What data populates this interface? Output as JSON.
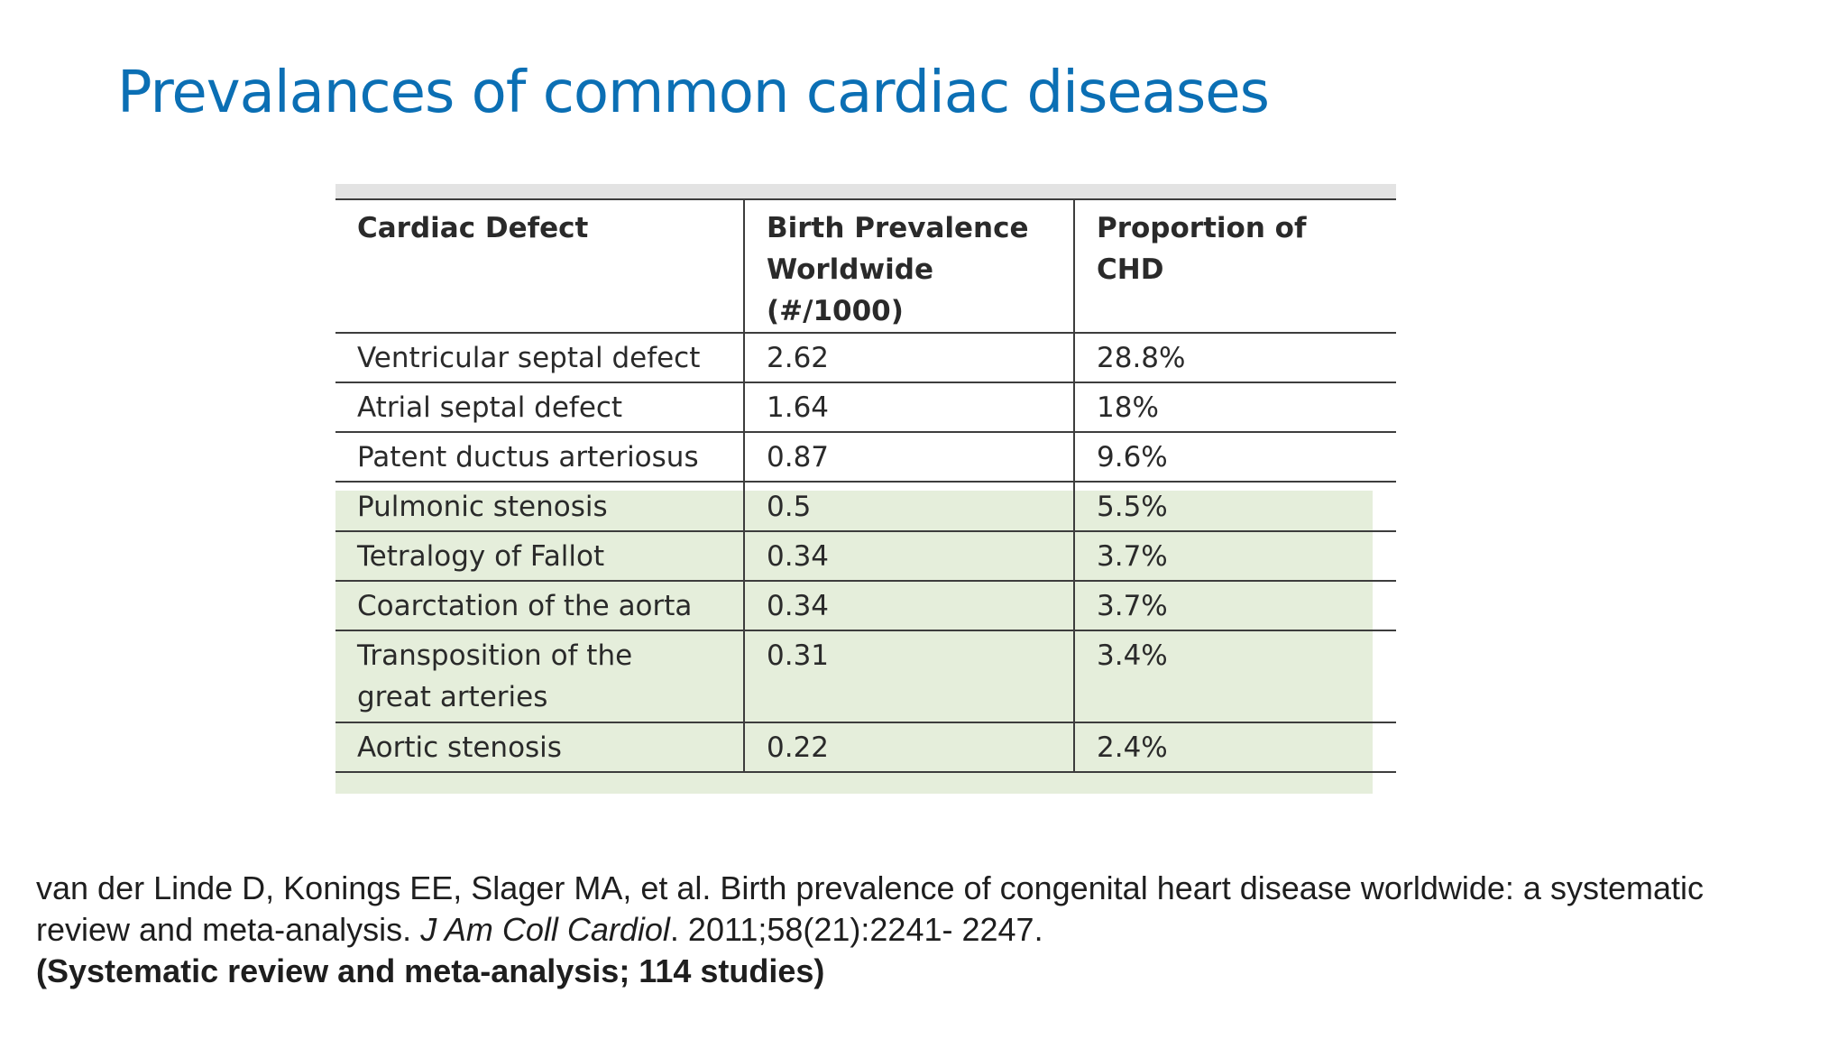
{
  "slide": {
    "title": "Prevalances of common cardiac diseases"
  },
  "table": {
    "headers": [
      "Cardiac Defect",
      "Birth Prevalence\n  Worldwide\n  (#/1000)",
      "Proportion of\n  CHD"
    ],
    "rows": [
      {
        "defect": "Ventricular septal defect",
        "prevalence": "2.62",
        "proportion": "28.8%"
      },
      {
        "defect": "Atrial septal defect",
        "prevalence": "1.64",
        "proportion": "18%"
      },
      {
        "defect": "Patent ductus arteriosus",
        "prevalence": "0.87",
        "proportion": "9.6%"
      },
      {
        "defect": "Pulmonic stenosis",
        "prevalence": "0.5",
        "proportion": "5.5%"
      },
      {
        "defect": "Tetralogy of Fallot",
        "prevalence": "0.34",
        "proportion": "3.7%"
      },
      {
        "defect": "Coarctation of the aorta",
        "prevalence": "0.34",
        "proportion": "3.7%"
      },
      {
        "defect": "Transposition of the\n  great arteries",
        "prevalence": "0.31",
        "proportion": "3.4%"
      },
      {
        "defect": "Aortic stenosis",
        "prevalence": "0.22",
        "proportion": "2.4%"
      }
    ],
    "highlight_color": "#e5eedb"
  },
  "citation": {
    "authors_title": "van der Linde D, Konings EE, Slager MA, et al. Birth prevalence of congenital heart disease worldwide: a systematic review and meta-analysis. ",
    "journal": "J Am Coll Cardiol",
    "details": ". 2011;58(21):2241- 2247.",
    "note": "(Systematic review and meta-analysis; 114 studies)"
  },
  "colors": {
    "title": "#0b6fb4",
    "text": "#1e1e1e",
    "rules": "#3d3d3d"
  }
}
